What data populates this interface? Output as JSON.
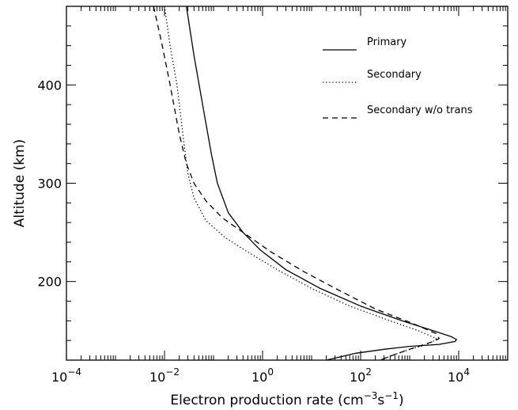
{
  "chart_data": {
    "type": "line",
    "xscale": "log",
    "xlim": [
      0.0001,
      100000
    ],
    "ylim": [
      120,
      480
    ],
    "xlabel": {
      "prefix": "Electron production rate (cm",
      "exp1": "−3",
      "mid": "s",
      "exp2": "−1",
      "suffix": ")"
    },
    "ylabel": "Altitude (km)",
    "x_ticks": [
      {
        "value": 0.0001,
        "base": "10",
        "exp": "−4"
      },
      {
        "value": 0.01,
        "base": "10",
        "exp": "−2"
      },
      {
        "value": 1,
        "base": "10",
        "exp": "0"
      },
      {
        "value": 100,
        "base": "10",
        "exp": "2"
      },
      {
        "value": 10000,
        "base": "10",
        "exp": "4"
      }
    ],
    "y_ticks": [
      {
        "value": 200,
        "label": "200"
      },
      {
        "value": 300,
        "label": "300"
      },
      {
        "value": 400,
        "label": "400"
      }
    ],
    "legend_position": "top-right",
    "series": [
      {
        "name": "Primary",
        "style": "solid",
        "points": [
          [
            0.028,
            480
          ],
          [
            0.04,
            430
          ],
          [
            0.06,
            380
          ],
          [
            0.09,
            330
          ],
          [
            0.12,
            300
          ],
          [
            0.2,
            270
          ],
          [
            0.4,
            250
          ],
          [
            0.9,
            232
          ],
          [
            3,
            212
          ],
          [
            15,
            193
          ],
          [
            100,
            175
          ],
          [
            700,
            160
          ],
          [
            3000,
            150
          ],
          [
            7000,
            144
          ],
          [
            9000,
            141
          ],
          [
            8500,
            139
          ],
          [
            4000,
            136
          ],
          [
            1000,
            134
          ],
          [
            300,
            131
          ],
          [
            80,
            127
          ],
          [
            20,
            120
          ]
        ]
      },
      {
        "name": "Secondary",
        "style": "dotted",
        "points": [
          [
            0.01,
            480
          ],
          [
            0.013,
            440
          ],
          [
            0.018,
            400
          ],
          [
            0.025,
            340
          ],
          [
            0.03,
            310
          ],
          [
            0.04,
            285
          ],
          [
            0.07,
            262
          ],
          [
            0.17,
            245
          ],
          [
            0.5,
            230
          ],
          [
            2,
            212
          ],
          [
            10,
            193
          ],
          [
            60,
            175
          ],
          [
            400,
            160
          ],
          [
            1500,
            150
          ],
          [
            3500,
            142
          ],
          [
            3000,
            139
          ],
          [
            2000,
            135
          ],
          [
            1000,
            131
          ],
          [
            400,
            124
          ],
          [
            250,
            120
          ]
        ]
      },
      {
        "name": "Secondary w/o trans",
        "style": "dashed",
        "points": [
          [
            0.006,
            480
          ],
          [
            0.009,
            440
          ],
          [
            0.013,
            400
          ],
          [
            0.02,
            350
          ],
          [
            0.028,
            320
          ],
          [
            0.04,
            300
          ],
          [
            0.07,
            282
          ],
          [
            0.15,
            265
          ],
          [
            0.4,
            250
          ],
          [
            1.5,
            230
          ],
          [
            7,
            210
          ],
          [
            40,
            190
          ],
          [
            200,
            172
          ],
          [
            1200,
            157
          ],
          [
            3500,
            147
          ],
          [
            4000,
            142
          ],
          [
            3000,
            139
          ],
          [
            2000,
            136
          ],
          [
            1000,
            131
          ],
          [
            400,
            124
          ],
          [
            250,
            120
          ]
        ]
      }
    ]
  }
}
